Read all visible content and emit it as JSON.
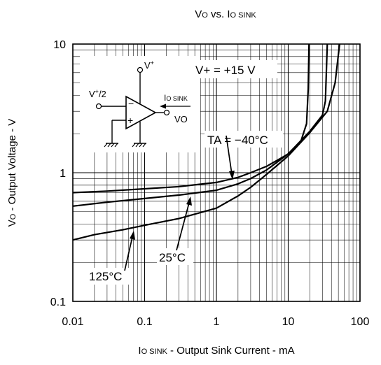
{
  "chart_data": {
    "type": "line",
    "title": "Vo vs. Io sink",
    "title_parts": {
      "v": "V",
      "v_sub": "O",
      "vs": " vs. ",
      "i": "I",
      "i_sub": "O SINK"
    },
    "xlabel_parts": {
      "i": "I",
      "i_sub": "O SINK",
      "rest": " - Output Sink Current - mA"
    },
    "ylabel_parts": {
      "v": "V",
      "v_sub": "O",
      "rest": " - Output Voltage - V"
    },
    "x_scale": "log",
    "y_scale": "log",
    "xlim": [
      0.01,
      100
    ],
    "ylim": [
      0.1,
      10
    ],
    "x_ticks": [
      {
        "value": 0.01,
        "label": "0.01"
      },
      {
        "value": 0.1,
        "label": "0.1"
      },
      {
        "value": 1,
        "label": "1"
      },
      {
        "value": 10,
        "label": "10"
      },
      {
        "value": 100,
        "label": "100"
      }
    ],
    "y_ticks": [
      {
        "value": 0.1,
        "label": "0.1"
      },
      {
        "value": 1,
        "label": "1"
      },
      {
        "value": 10,
        "label": "10"
      }
    ],
    "grid": true,
    "series": [
      {
        "name": "TA = −40°C",
        "points": [
          [
            0.01,
            0.7
          ],
          [
            0.03,
            0.72
          ],
          [
            0.1,
            0.75
          ],
          [
            0.3,
            0.78
          ],
          [
            1,
            0.84
          ],
          [
            2,
            0.92
          ],
          [
            3,
            1.0
          ],
          [
            5,
            1.12
          ],
          [
            8,
            1.3
          ],
          [
            10,
            1.4
          ],
          [
            15,
            1.75
          ],
          [
            18,
            2.4
          ],
          [
            19,
            4.5
          ],
          [
            19.5,
            10
          ]
        ]
      },
      {
        "name": "25°C",
        "points": [
          [
            0.01,
            0.55
          ],
          [
            0.03,
            0.59
          ],
          [
            0.1,
            0.63
          ],
          [
            0.3,
            0.67
          ],
          [
            1,
            0.73
          ],
          [
            2,
            0.82
          ],
          [
            3,
            0.9
          ],
          [
            5,
            1.05
          ],
          [
            10,
            1.4
          ],
          [
            20,
            2.1
          ],
          [
            30,
            2.8
          ],
          [
            33,
            3.6
          ],
          [
            35,
            10
          ]
        ]
      },
      {
        "name": "125°C",
        "points": [
          [
            0.01,
            0.3
          ],
          [
            0.02,
            0.33
          ],
          [
            0.05,
            0.36
          ],
          [
            0.1,
            0.39
          ],
          [
            0.3,
            0.44
          ],
          [
            1,
            0.53
          ],
          [
            2,
            0.66
          ],
          [
            3,
            0.77
          ],
          [
            5,
            0.97
          ],
          [
            10,
            1.35
          ],
          [
            20,
            2.05
          ],
          [
            35,
            3.0
          ],
          [
            45,
            5.0
          ],
          [
            52,
            10
          ]
        ]
      }
    ],
    "annotations": {
      "vplus_value": "V+ = +15 V",
      "ta_label": "TA = −40°C",
      "label_25": "25°C",
      "label_125": "125°C",
      "circuit": {
        "supply": "V+",
        "bias": "V+/2",
        "sink": "IO SINK",
        "out": "VO",
        "minus": "−",
        "plus": "+"
      }
    }
  }
}
